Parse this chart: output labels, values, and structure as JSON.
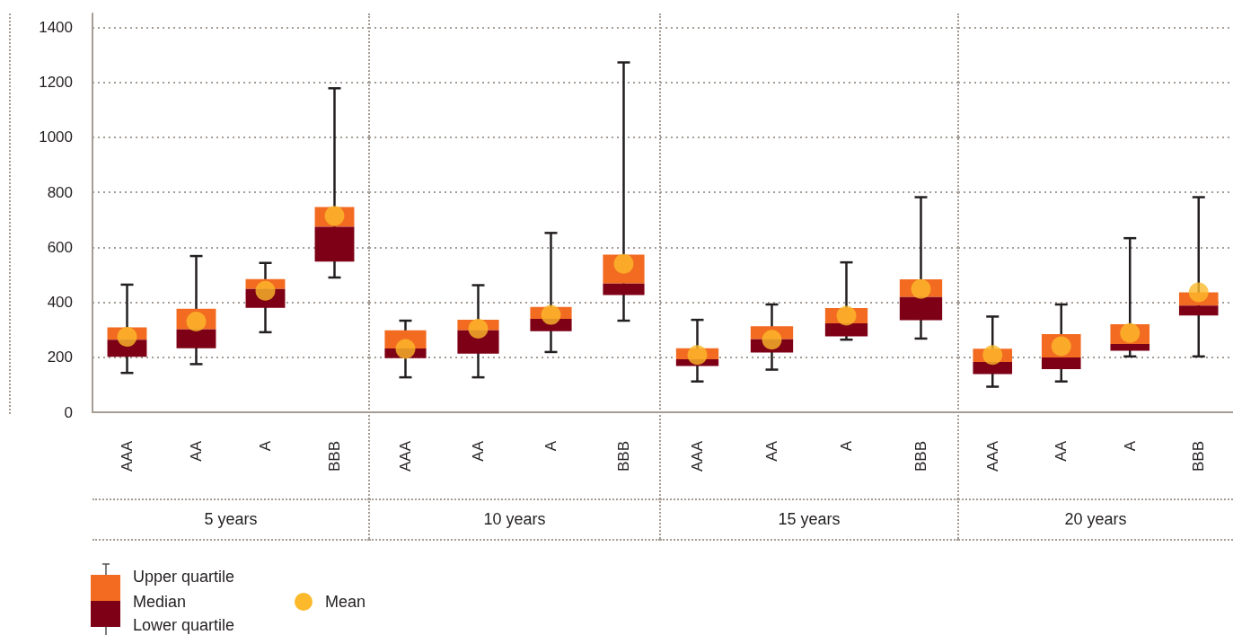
{
  "chart_data": [
    {
      "type": "box",
      "xlabel": "5 years",
      "categories": [
        "AAA",
        "AA",
        "A",
        "BBB"
      ],
      "ylim": [
        0,
        1450
      ],
      "yticks": [
        0,
        200,
        400,
        600,
        800,
        1000,
        1200,
        1400
      ],
      "grid": "y",
      "annotations": [
        "Upper quartile",
        "Median",
        "Lower quartile",
        "Mean"
      ],
      "boxes": [
        {
          "low": 143,
          "q1": 202,
          "median": 264,
          "q3": 309,
          "high": 464,
          "mean": 274
        },
        {
          "low": 175,
          "q1": 233,
          "median": 301,
          "q3": 376,
          "high": 568,
          "mean": 330
        },
        {
          "low": 291,
          "q1": 380,
          "median": 448,
          "q3": 484,
          "high": 543,
          "mean": 442
        },
        {
          "low": 490,
          "q1": 548,
          "median": 674,
          "q3": 746,
          "high": 1178,
          "mean": 714
        }
      ]
    },
    {
      "type": "box",
      "xlabel": "10 years",
      "categories": [
        "AAA",
        "AA",
        "A",
        "BBB"
      ],
      "ylim": [
        0,
        1450
      ],
      "yticks": [
        0,
        200,
        400,
        600,
        800,
        1000,
        1200,
        1400
      ],
      "grid": "y",
      "tick_labels": "x",
      "boxes": [
        {
          "low": 127,
          "q1": 197,
          "median": 232,
          "q3": 298,
          "high": 333,
          "mean": 230
        },
        {
          "low": 127,
          "q1": 213,
          "median": 298,
          "q3": 336,
          "high": 462,
          "mean": 304
        },
        {
          "low": 219,
          "q1": 295,
          "median": 340,
          "q3": 383,
          "high": 652,
          "mean": 354
        },
        {
          "low": 333,
          "q1": 426,
          "median": 468,
          "q3": 573,
          "high": 1272,
          "mean": 540
        }
      ]
    },
    {
      "type": "box",
      "xlabel": "15 years",
      "categories": [
        "AAA",
        "AA",
        "A",
        "BBB"
      ],
      "ylim": [
        0,
        1450
      ],
      "yticks": [
        0,
        200,
        400,
        600,
        800,
        1000,
        1200,
        1400
      ],
      "grid": "y",
      "tick_labels": "x",
      "boxes": [
        {
          "low": 112,
          "q1": 168,
          "median": 193,
          "q3": 233,
          "high": 336,
          "mean": 208
        },
        {
          "low": 155,
          "q1": 217,
          "median": 265,
          "q3": 313,
          "high": 392,
          "mean": 264
        },
        {
          "low": 264,
          "q1": 276,
          "median": 323,
          "q3": 379,
          "high": 545,
          "mean": 351
        },
        {
          "low": 268,
          "q1": 335,
          "median": 419,
          "q3": 483,
          "high": 782,
          "mean": 448
        }
      ]
    },
    {
      "type": "box",
      "xlabel": "20 years",
      "categories": [
        "AAA",
        "AA",
        "A",
        "BBB"
      ],
      "ylim": [
        0,
        1450
      ],
      "yticks": [
        0,
        200,
        400,
        600,
        800,
        1000,
        1200,
        1400
      ],
      "grid": "y",
      "tick_labels": "x",
      "boxes": [
        {
          "low": 93,
          "q1": 139,
          "median": 183,
          "q3": 231,
          "high": 348,
          "mean": 208
        },
        {
          "low": 112,
          "q1": 157,
          "median": 199,
          "q3": 284,
          "high": 392,
          "mean": 240
        },
        {
          "low": 203,
          "q1": 224,
          "median": 248,
          "q3": 320,
          "high": 633,
          "mean": 288
        },
        {
          "low": 203,
          "q1": 352,
          "median": 388,
          "q3": 436,
          "high": 782,
          "mean": 436
        }
      ]
    }
  ]
}
